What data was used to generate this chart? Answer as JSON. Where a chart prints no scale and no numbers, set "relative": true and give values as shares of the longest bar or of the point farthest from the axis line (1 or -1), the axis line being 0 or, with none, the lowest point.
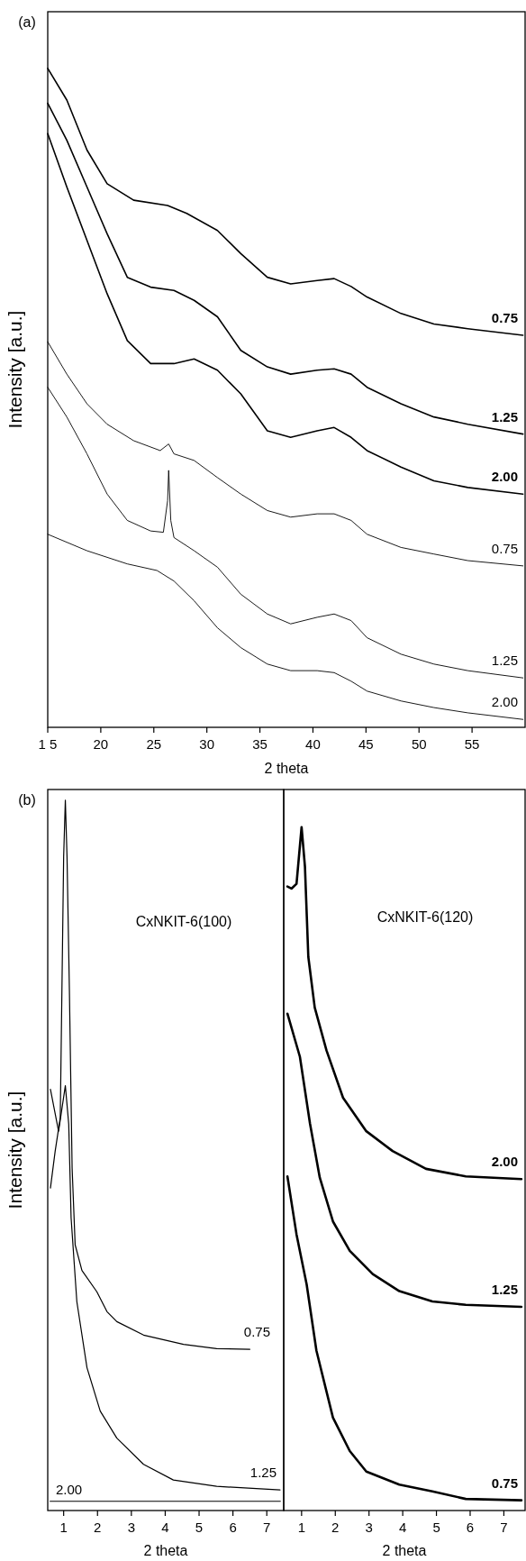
{
  "chart_data": [
    {
      "type": "line",
      "relative": true,
      "xlabel": "2 theta",
      "ylabel": "Intensity [a.u.]",
      "annotations": [
        "(a)"
      ],
      "xlim": [
        15,
        60
      ],
      "xticks": [
        {
          "value": 15,
          "label": "1 5"
        },
        20,
        25,
        30,
        35,
        40,
        45,
        50,
        55
      ],
      "series": [
        {
          "name": "0.75",
          "color": "#000000",
          "x": [
            15,
            16.8,
            18.7,
            20.6,
            23.1,
            26.3,
            28.1,
            31.0,
            33.2,
            35.7,
            37.9,
            40.4,
            42.0,
            43.6,
            45.1,
            48.3,
            51.4,
            54.6,
            59.8
          ],
          "values": [
            1.0,
            0.952,
            0.876,
            0.825,
            0.8,
            0.792,
            0.78,
            0.754,
            0.719,
            0.683,
            0.673,
            0.678,
            0.681,
            0.669,
            0.653,
            0.628,
            0.612,
            0.605,
            0.595
          ]
        },
        {
          "name": "1.25",
          "color": "#000000",
          "x": [
            15,
            16.8,
            18.7,
            20.6,
            22.5,
            24.7,
            26.9,
            28.8,
            31.0,
            33.2,
            35.7,
            37.9,
            40.4,
            42.0,
            43.6,
            45.1,
            48.3,
            51.4,
            54.6,
            59.8
          ],
          "values": [
            0.947,
            0.891,
            0.82,
            0.749,
            0.683,
            0.668,
            0.663,
            0.648,
            0.623,
            0.572,
            0.547,
            0.536,
            0.542,
            0.544,
            0.536,
            0.516,
            0.491,
            0.471,
            0.46,
            0.445
          ]
        },
        {
          "name": "2.00",
          "color": "#000000",
          "x": [
            15,
            16.8,
            18.7,
            20.6,
            22.5,
            24.7,
            26.9,
            28.8,
            31.0,
            33.2,
            35.7,
            37.9,
            40.4,
            42.0,
            43.6,
            45.1,
            48.3,
            51.4,
            54.6,
            59.8
          ],
          "values": [
            0.901,
            0.82,
            0.739,
            0.658,
            0.587,
            0.552,
            0.552,
            0.559,
            0.542,
            0.506,
            0.45,
            0.44,
            0.45,
            0.455,
            0.44,
            0.42,
            0.395,
            0.374,
            0.364,
            0.354
          ]
        },
        {
          "name": "0.75",
          "color": "#000000",
          "x": [
            15,
            16.8,
            18.7,
            20.6,
            23.1,
            25.6,
            26.4,
            26.9,
            28.8,
            31.0,
            33.2,
            35.7,
            37.9,
            40.4,
            42.0,
            43.6,
            45.1,
            48.3,
            51.4,
            54.6,
            59.8
          ],
          "values": [
            0.585,
            0.536,
            0.491,
            0.46,
            0.435,
            0.42,
            0.43,
            0.415,
            0.405,
            0.379,
            0.354,
            0.329,
            0.319,
            0.324,
            0.324,
            0.314,
            0.293,
            0.273,
            0.263,
            0.253,
            0.245
          ]
        },
        {
          "name": "1.25",
          "color": "#000000",
          "x": [
            15,
            16.8,
            18.7,
            20.6,
            22.5,
            24.7,
            25.9,
            26.3,
            26.4,
            26.6,
            26.9,
            28.8,
            31.0,
            33.2,
            35.7,
            37.9,
            40.4,
            42.0,
            43.6,
            45.1,
            48.3,
            51.4,
            54.6,
            59.8
          ],
          "values": [
            0.516,
            0.471,
            0.415,
            0.354,
            0.314,
            0.298,
            0.296,
            0.344,
            0.39,
            0.314,
            0.288,
            0.268,
            0.243,
            0.202,
            0.172,
            0.157,
            0.167,
            0.172,
            0.162,
            0.136,
            0.111,
            0.096,
            0.086,
            0.075
          ]
        },
        {
          "name": "2.00",
          "color": "#000000",
          "x": [
            15,
            18.7,
            22.5,
            25.3,
            26.9,
            28.8,
            31.0,
            33.2,
            35.7,
            37.9,
            40.4,
            42.0,
            43.6,
            45.1,
            48.3,
            51.4,
            54.6,
            59.8
          ],
          "values": [
            0.293,
            0.268,
            0.248,
            0.238,
            0.222,
            0.192,
            0.151,
            0.121,
            0.096,
            0.086,
            0.086,
            0.083,
            0.07,
            0.055,
            0.04,
            0.03,
            0.022,
            0.012
          ]
        }
      ]
    },
    {
      "type": "line",
      "relative": true,
      "xlabel": "2 theta",
      "ylabel": "Intensity [a.u.]",
      "annotations": [
        "(b)",
        "CxNKIT-6(100)"
      ],
      "xlim": [
        0.53,
        7.5
      ],
      "xticks": [
        1,
        2,
        3,
        4,
        5,
        6,
        7
      ],
      "series": [
        {
          "name": "0.75",
          "color": "#000000",
          "x": [
            0.61,
            0.75,
            0.9,
            1.0,
            1.05,
            1.1,
            1.17,
            1.25,
            1.34,
            1.54,
            1.98,
            2.28,
            2.57,
            3.36,
            4.54,
            5.52,
            6.5
          ],
          "values": [
            0.454,
            0.506,
            0.553,
            0.92,
            1.0,
            0.92,
            0.732,
            0.482,
            0.374,
            0.338,
            0.308,
            0.28,
            0.266,
            0.247,
            0.234,
            0.228,
            0.227
          ]
        },
        {
          "name": "1.25",
          "color": "#000000",
          "x": [
            0.61,
            0.85,
            1.05,
            1.15,
            1.22,
            1.39,
            1.69,
            2.08,
            2.57,
            3.36,
            4.24,
            5.52,
            7.39
          ],
          "values": [
            0.593,
            0.534,
            0.598,
            0.544,
            0.412,
            0.294,
            0.201,
            0.14,
            0.102,
            0.065,
            0.043,
            0.034,
            0.029
          ]
        },
        {
          "name": "2.00",
          "color": "#000000",
          "x": [
            0.6,
            2,
            4,
            6,
            7.4
          ],
          "values": [
            0.013,
            0.013,
            0.013,
            0.013,
            0.013
          ]
        }
      ]
    },
    {
      "type": "line",
      "relative": true,
      "xlabel": "2 theta",
      "annotations": [
        "CxNKIT-6(120)"
      ],
      "xlim": [
        0.47,
        7.63
      ],
      "xticks": [
        1,
        2,
        3,
        4,
        5,
        6,
        7
      ],
      "series": [
        {
          "name": "2.00",
          "color": "#000000",
          "x": [
            0.58,
            0.7,
            0.85,
            1.0,
            1.1,
            1.2,
            1.39,
            1.74,
            2.23,
            2.92,
            3.7,
            4.69,
            5.87,
            7.52
          ],
          "values": [
            0.913,
            0.91,
            0.917,
            1.0,
            0.942,
            0.81,
            0.736,
            0.673,
            0.604,
            0.555,
            0.526,
            0.5,
            0.489,
            0.485
          ]
        },
        {
          "name": "1.25",
          "color": "#000000",
          "x": [
            0.58,
            0.95,
            1.25,
            1.54,
            1.93,
            2.43,
            3.11,
            3.9,
            4.88,
            5.87,
            7.52
          ],
          "values": [
            0.727,
            0.664,
            0.566,
            0.487,
            0.423,
            0.38,
            0.346,
            0.321,
            0.306,
            0.301,
            0.298
          ]
        },
        {
          "name": "0.75",
          "color": "#000000",
          "x": [
            0.58,
            0.85,
            1.15,
            1.44,
            1.93,
            2.43,
            2.92,
            3.9,
            4.88,
            5.87,
            7.52
          ],
          "values": [
            0.489,
            0.404,
            0.331,
            0.234,
            0.136,
            0.087,
            0.057,
            0.038,
            0.028,
            0.017,
            0.015
          ]
        }
      ]
    }
  ]
}
